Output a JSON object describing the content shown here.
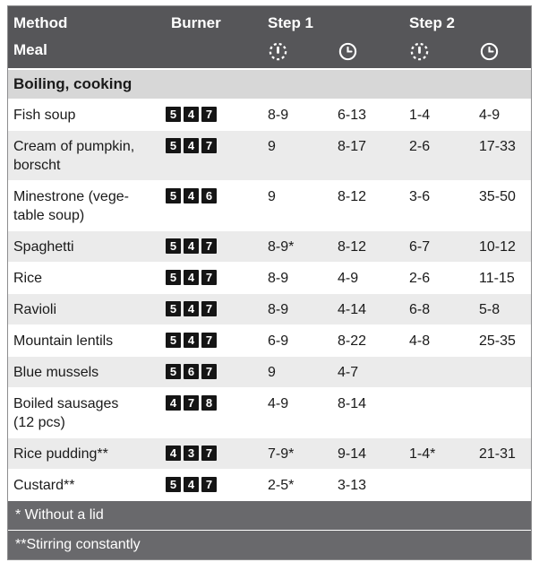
{
  "header": {
    "method": "Method",
    "meal": "Meal",
    "burner": "Burner",
    "step1": "Step 1",
    "step2": "Step 2",
    "power_icon": "power-level-icon",
    "time_icon": "clock-icon"
  },
  "section": {
    "title": "Boiling, cooking"
  },
  "rows": [
    {
      "meal": "Fish soup",
      "burners": [
        "5",
        "4",
        "7"
      ],
      "s1_power": "8-9",
      "s1_time": "6-13",
      "s2_power": "1-4",
      "s2_time": "4-9"
    },
    {
      "meal": "Cream of pumpkin,\nborscht",
      "burners": [
        "5",
        "4",
        "7"
      ],
      "s1_power": "9",
      "s1_time": "8-17",
      "s2_power": "2-6",
      "s2_time": "17-33"
    },
    {
      "meal": "Minestrone (vege-\ntable soup)",
      "burners": [
        "5",
        "4",
        "6"
      ],
      "s1_power": "9",
      "s1_time": "8-12",
      "s2_power": "3-6",
      "s2_time": "35-50"
    },
    {
      "meal": "Spaghetti",
      "burners": [
        "5",
        "4",
        "7"
      ],
      "s1_power": "8-9*",
      "s1_time": "8-12",
      "s2_power": "6-7",
      "s2_time": "10-12"
    },
    {
      "meal": "Rice",
      "burners": [
        "5",
        "4",
        "7"
      ],
      "s1_power": "8-9",
      "s1_time": "4-9",
      "s2_power": "2-6",
      "s2_time": "11-15"
    },
    {
      "meal": "Ravioli",
      "burners": [
        "5",
        "4",
        "7"
      ],
      "s1_power": "8-9",
      "s1_time": "4-14",
      "s2_power": "6-8",
      "s2_time": "5-8"
    },
    {
      "meal": "Mountain lentils",
      "burners": [
        "5",
        "4",
        "7"
      ],
      "s1_power": "6-9",
      "s1_time": "8-22",
      "s2_power": "4-8",
      "s2_time": "25-35"
    },
    {
      "meal": "Blue mussels",
      "burners": [
        "5",
        "6",
        "7"
      ],
      "s1_power": "9",
      "s1_time": "4-7",
      "s2_power": "",
      "s2_time": ""
    },
    {
      "meal": "Boiled sausages\n(12 pcs)",
      "burners": [
        "4",
        "7",
        "8"
      ],
      "s1_power": "4-9",
      "s1_time": "8-14",
      "s2_power": "",
      "s2_time": ""
    },
    {
      "meal": "Rice pudding**",
      "burners": [
        "4",
        "3",
        "7"
      ],
      "s1_power": "7-9*",
      "s1_time": "9-14",
      "s2_power": "1-4*",
      "s2_time": "21-31"
    },
    {
      "meal": "Custard**",
      "burners": [
        "5",
        "4",
        "7"
      ],
      "s1_power": "2-5*",
      "s1_time": "3-13",
      "s2_power": "",
      "s2_time": ""
    }
  ],
  "footnotes": [
    "* Without a lid",
    "**Stirring constantly"
  ],
  "colors": {
    "header_bg": "#565659",
    "header_text": "#ffffff",
    "section_bg": "#d7d7d7",
    "row_alt_bg": "#ebebeb",
    "burner_chip_bg": "#151515",
    "footnote_bg": "#69696c"
  }
}
